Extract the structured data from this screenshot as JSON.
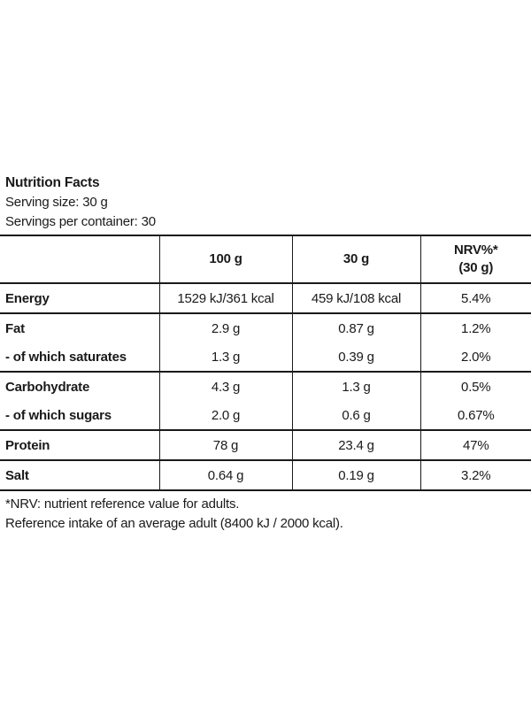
{
  "header": {
    "title": "Nutrition Facts",
    "serving_size": "Serving size: 30 g",
    "servings_per_container": "Servings per container: 30"
  },
  "table": {
    "columns": [
      "",
      "100 g",
      "30 g",
      "NRV%*"
    ],
    "nrv_sub": "(30 g)",
    "rows": [
      {
        "name": "Energy",
        "per100": "1529 kJ/361 kcal",
        "perServing": "459 kJ/108 kcal",
        "nrv": "5.4%"
      },
      {
        "name": "Fat",
        "per100": "2.9 g",
        "perServing": "0.87 g",
        "nrv": "1.2%"
      },
      {
        "name": "- of which saturates",
        "per100": "1.3 g",
        "perServing": "0.39 g",
        "nrv": "2.0%"
      },
      {
        "name": "Carbohydrate",
        "per100": "4.3 g",
        "perServing": "1.3 g",
        "nrv": "0.5%"
      },
      {
        "name": "- of which sugars",
        "per100": "2.0 g",
        "perServing": "0.6 g",
        "nrv": "0.67%"
      },
      {
        "name": "Protein",
        "per100": "78 g",
        "perServing": "23.4 g",
        "nrv": "47%"
      },
      {
        "name": "Salt",
        "per100": "0.64 g",
        "perServing": "0.19 g",
        "nrv": "3.2%"
      }
    ]
  },
  "footer": {
    "note1": "*NRV: nutrient reference value for adults.",
    "note2": "Reference intake of an average adult (8400 kJ / 2000 kcal)."
  }
}
